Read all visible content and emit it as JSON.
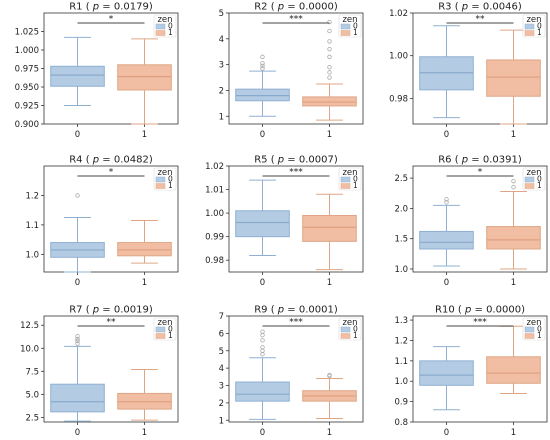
{
  "figure": {
    "legend_title": "zen",
    "group_colors": [
      "#b4cbe4",
      "#f1bea3"
    ],
    "group_edge_colors": [
      "#8fb0d2",
      "#dfa686"
    ],
    "median_colors": [
      "#8aaacc",
      "#e0a080"
    ]
  },
  "chart_data": [
    {
      "type": "box",
      "title": "R1 ( p = 0.0179)",
      "title_prefix": "R1 (",
      "title_p_value": "0.0179",
      "title_suffix": ")",
      "categories": [
        "0",
        "1"
      ],
      "legend": [
        "0",
        "1"
      ],
      "significance": "*",
      "ylim": [
        0.9,
        1.05
      ],
      "yticks": [
        "0.900",
        "0.925",
        "0.950",
        "0.975",
        "1.000",
        "1.025"
      ],
      "ytick_values": [
        0.9,
        0.925,
        0.95,
        0.975,
        1.0,
        1.025
      ],
      "boxes": [
        {
          "q1": 0.951,
          "median": 0.966,
          "q3": 0.978,
          "whisker_low": 0.925,
          "whisker_high": 1.017,
          "outliers": []
        },
        {
          "q1": 0.946,
          "median": 0.964,
          "q3": 0.98,
          "whisker_low": 0.9,
          "whisker_high": 1.015,
          "outliers": []
        }
      ]
    },
    {
      "type": "box",
      "title": "R2 ( p = 0.0000)",
      "title_prefix": "R2 (",
      "title_p_value": "0.0000",
      "title_suffix": ")",
      "categories": [
        "0",
        "1"
      ],
      "legend": [
        "0",
        "1"
      ],
      "significance": "***",
      "ylim": [
        0.7,
        5.0
      ],
      "yticks": [
        "1",
        "2",
        "3",
        "4",
        "5"
      ],
      "ytick_values": [
        1,
        2,
        3,
        4,
        5
      ],
      "boxes": [
        {
          "q1": 1.6,
          "median": 1.8,
          "q3": 2.05,
          "whisker_low": 1.0,
          "whisker_high": 2.75,
          "outliers": [
            2.85,
            2.95,
            3.05,
            3.3
          ]
        },
        {
          "q1": 1.4,
          "median": 1.55,
          "q3": 1.75,
          "whisker_low": 0.85,
          "whisker_high": 2.25,
          "outliers": [
            2.5,
            2.7,
            2.9,
            3.3,
            3.6,
            3.9,
            4.3,
            4.65
          ]
        }
      ]
    },
    {
      "type": "box",
      "title": "R3 ( p = 0.0046)",
      "title_prefix": "R3 (",
      "title_p_value": "0.0046",
      "title_suffix": ")",
      "categories": [
        "0",
        "1"
      ],
      "legend": [
        "0",
        "1"
      ],
      "significance": "**",
      "ylim": [
        0.968,
        1.02
      ],
      "yticks": [
        "0.98",
        "1.00",
        "1.02"
      ],
      "ytick_values": [
        0.98,
        1.0,
        1.02
      ],
      "boxes": [
        {
          "q1": 0.984,
          "median": 0.992,
          "q3": 0.9995,
          "whisker_low": 0.971,
          "whisker_high": 1.014,
          "outliers": []
        },
        {
          "q1": 0.981,
          "median": 0.99,
          "q3": 0.998,
          "whisker_low": 0.968,
          "whisker_high": 1.012,
          "outliers": []
        }
      ]
    },
    {
      "type": "box",
      "title": "R4 ( p = 0.0482)",
      "title_prefix": "R4 (",
      "title_p_value": "0.0482",
      "title_suffix": ")",
      "categories": [
        "0",
        "1"
      ],
      "legend": [
        "0",
        "1"
      ],
      "significance": "*",
      "ylim": [
        0.94,
        1.3
      ],
      "yticks": [
        "1.0",
        "1.1",
        "1.2"
      ],
      "ytick_values": [
        1.0,
        1.1,
        1.2
      ],
      "boxes": [
        {
          "q1": 0.99,
          "median": 1.015,
          "q3": 1.04,
          "whisker_low": 0.94,
          "whisker_high": 1.125,
          "outliers": [
            1.2
          ]
        },
        {
          "q1": 0.995,
          "median": 1.015,
          "q3": 1.04,
          "whisker_low": 0.97,
          "whisker_high": 1.115,
          "outliers": []
        }
      ]
    },
    {
      "type": "box",
      "title": "R5 ( p = 0.0007)",
      "title_prefix": "R5 (",
      "title_p_value": "0.0007",
      "title_suffix": ")",
      "categories": [
        "0",
        "1"
      ],
      "legend": [
        "0",
        "1"
      ],
      "significance": "***",
      "ylim": [
        0.975,
        1.02
      ],
      "yticks": [
        "0.98",
        "0.99",
        "1.00",
        "1.01",
        "1.02"
      ],
      "ytick_values": [
        0.98,
        0.99,
        1.0,
        1.01,
        1.02
      ],
      "boxes": [
        {
          "q1": 0.99,
          "median": 0.996,
          "q3": 1.001,
          "whisker_low": 0.982,
          "whisker_high": 1.014,
          "outliers": []
        },
        {
          "q1": 0.988,
          "median": 0.994,
          "q3": 0.999,
          "whisker_low": 0.976,
          "whisker_high": 1.008,
          "outliers": []
        }
      ]
    },
    {
      "type": "box",
      "title": "R6 ( p = 0.0391)",
      "title_prefix": "R6 (",
      "title_p_value": "0.0391",
      "title_suffix": ")",
      "categories": [
        "0",
        "1"
      ],
      "legend": [
        "0",
        "1"
      ],
      "significance": "*",
      "ylim": [
        0.95,
        2.7
      ],
      "yticks": [
        "1.0",
        "1.5",
        "2.0",
        "2.5"
      ],
      "ytick_values": [
        1.0,
        1.5,
        2.0,
        2.5
      ],
      "boxes": [
        {
          "q1": 1.33,
          "median": 1.44,
          "q3": 1.62,
          "whisker_low": 1.05,
          "whisker_high": 2.05,
          "outliers": [
            2.1,
            2.15
          ]
        },
        {
          "q1": 1.33,
          "median": 1.48,
          "q3": 1.7,
          "whisker_low": 1.0,
          "whisker_high": 2.28,
          "outliers": [
            2.35,
            2.45
          ]
        }
      ]
    },
    {
      "type": "box",
      "title": "R7 ( p = 0.0019)",
      "title_prefix": "R7 (",
      "title_p_value": "0.0019",
      "title_suffix": ")",
      "categories": [
        "0",
        "1"
      ],
      "legend": [
        "0",
        "1"
      ],
      "significance": "**",
      "ylim": [
        2.0,
        13.5
      ],
      "yticks": [
        "2.5",
        "5.0",
        "7.5",
        "10.0",
        "12.5"
      ],
      "ytick_values": [
        2.5,
        5.0,
        7.5,
        10.0,
        12.5
      ],
      "boxes": [
        {
          "q1": 3.1,
          "median": 4.2,
          "q3": 6.1,
          "whisker_low": 2.1,
          "whisker_high": 10.2,
          "outliers": [
            10.5,
            10.8,
            11.0,
            11.3
          ]
        },
        {
          "q1": 3.4,
          "median": 4.2,
          "q3": 5.1,
          "whisker_low": 2.2,
          "whisker_high": 7.7,
          "outliers": []
        }
      ]
    },
    {
      "type": "box",
      "title": "R9 ( p = 0.0001)",
      "title_prefix": "R9 (",
      "title_p_value": "0.0001",
      "title_suffix": ")",
      "categories": [
        "0",
        "1"
      ],
      "legend": [
        "0",
        "1"
      ],
      "significance": "***",
      "ylim": [
        0.9,
        7.0
      ],
      "yticks": [
        "1",
        "2",
        "3",
        "4",
        "5",
        "6",
        "7"
      ],
      "ytick_values": [
        1,
        2,
        3,
        4,
        5,
        6,
        7
      ],
      "boxes": [
        {
          "q1": 2.1,
          "median": 2.5,
          "q3": 3.2,
          "whisker_low": 1.05,
          "whisker_high": 4.6,
          "outliers": [
            4.8,
            5.0,
            5.2,
            5.6,
            5.9,
            6.1
          ]
        },
        {
          "q1": 2.1,
          "median": 2.4,
          "q3": 2.7,
          "whisker_low": 1.1,
          "whisker_high": 3.4,
          "outliers": [
            3.55,
            3.6
          ]
        }
      ]
    },
    {
      "type": "box",
      "title": "R10 ( p = 0.0000)",
      "title_prefix": "R10 (",
      "title_p_value": "0.0000",
      "title_suffix": ")",
      "categories": [
        "0",
        "1"
      ],
      "legend": [
        "0",
        "1"
      ],
      "significance": "***",
      "ylim": [
        0.8,
        1.32
      ],
      "yticks": [
        "0.8",
        "0.9",
        "1.0",
        "1.1",
        "1.2",
        "1.3"
      ],
      "ytick_values": [
        0.8,
        0.9,
        1.0,
        1.1,
        1.2,
        1.3
      ],
      "boxes": [
        {
          "q1": 0.98,
          "median": 1.03,
          "q3": 1.1,
          "whisker_low": 0.86,
          "whisker_high": 1.17,
          "outliers": []
        },
        {
          "q1": 0.99,
          "median": 1.04,
          "q3": 1.12,
          "whisker_low": 0.94,
          "whisker_high": 1.27,
          "outliers": []
        }
      ]
    }
  ]
}
